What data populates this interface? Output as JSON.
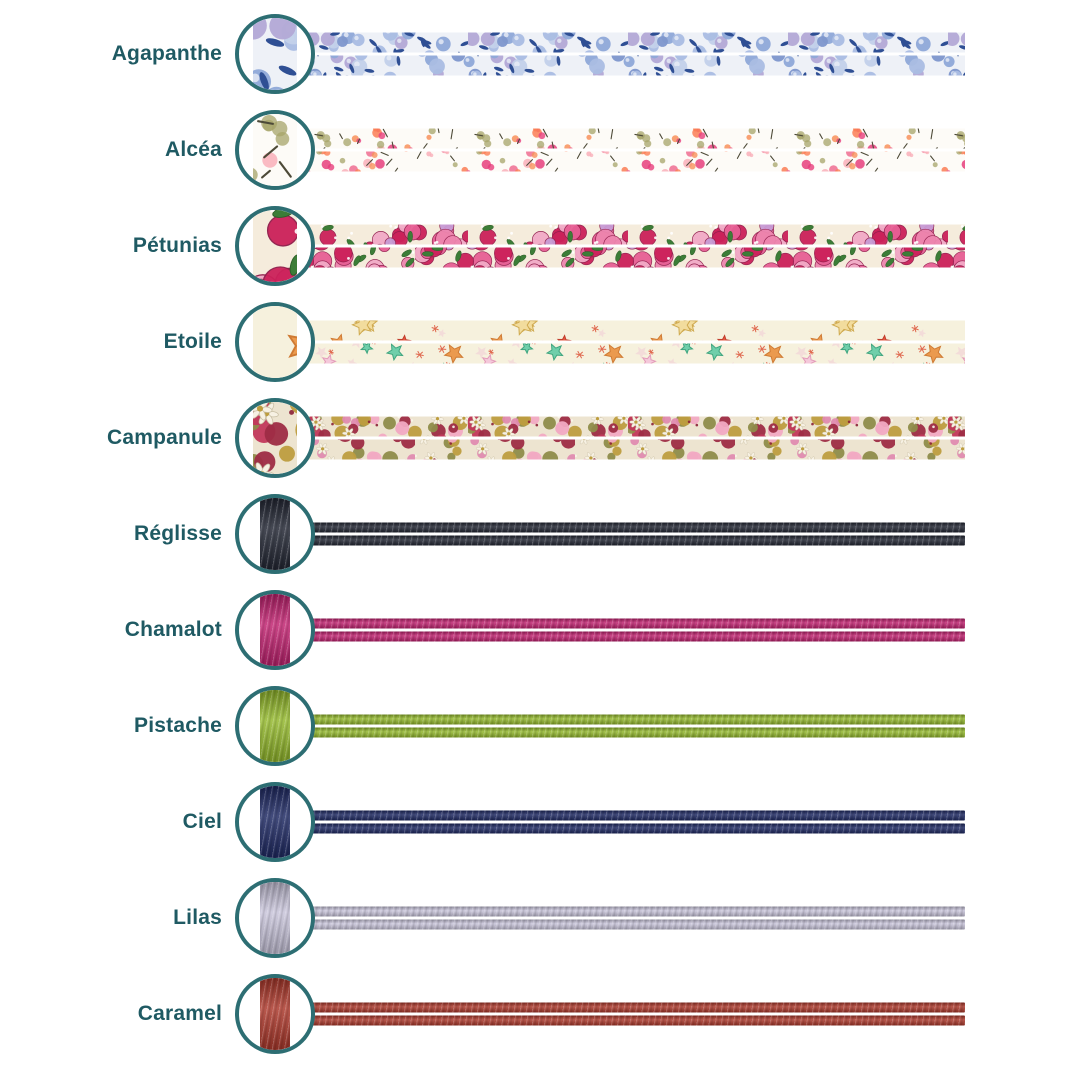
{
  "theme": {
    "background": "#ffffff",
    "ring_color": "#2d6e73",
    "label_color": "#1f5a63"
  },
  "swatches": [
    {
      "label": "Agapanthe",
      "type": "fabric",
      "pattern": "agapanthe"
    },
    {
      "label": "Alcéa",
      "type": "fabric",
      "pattern": "alcea"
    },
    {
      "label": "Pétunias",
      "type": "fabric",
      "pattern": "petunias"
    },
    {
      "label": "Etoile",
      "type": "fabric",
      "pattern": "etoile"
    },
    {
      "label": "Campanule",
      "type": "fabric",
      "pattern": "campanule"
    },
    {
      "label": "Réglisse",
      "type": "cord",
      "color": "#232734"
    },
    {
      "label": "Chamalot",
      "type": "cord",
      "color": "#c22371"
    },
    {
      "label": "Pistache",
      "type": "cord",
      "color": "#94b92d"
    },
    {
      "label": "Ciel",
      "type": "cord",
      "color": "#1f2a64"
    },
    {
      "label": "Lilas",
      "type": "cord",
      "color": "#c8c4da"
    },
    {
      "label": "Caramel",
      "type": "cord",
      "color": "#ad392c"
    }
  ],
  "patterns": {
    "agapanthe": {
      "motif": "berry",
      "bg": "#eef1f7",
      "colors": [
        "#7e96cc",
        "#a9bce2",
        "#b3a8d6",
        "#c3d0ea",
        "#8fa8d8"
      ],
      "leaf": "#2f4f94",
      "highlight": "#e8edf6"
    },
    "alcea": {
      "motif": "floret",
      "bg": "#fdfbf7",
      "colors": [
        "#e73f7d",
        "#f8925c",
        "#f9b0ba",
        "#fb7e55",
        "#ef6f92"
      ],
      "leaf": "#a7a469",
      "stem": "#4d4a38"
    },
    "petunias": {
      "motif": "dense",
      "bg": "#f5ecdc",
      "colors": [
        "#ee85ae",
        "#cc2059",
        "#c79ad4",
        "#e75f95",
        "#f2aac6"
      ],
      "leaf": "#3c7d37",
      "outline": "#8e1b4a",
      "accent": "#ffffff"
    },
    "etoile": {
      "motif": "star",
      "bg": "#f6f1dd",
      "stars": [
        [
          "#6fceaa",
          "#3da47e"
        ],
        [
          "#f2dc9d",
          "#cfa94e"
        ],
        [
          "#e4563f",
          "#c23e2c"
        ],
        [
          "#f4c9da",
          "#e39ab9"
        ],
        [
          "#eb9a4e",
          "#cf7a33"
        ]
      ],
      "sparkle": "#e0694f"
    },
    "campanule": {
      "motif": "dense2",
      "bg": "#ede4d0",
      "colors": [
        "#e08bb0",
        "#c2385a",
        "#8f8c4a",
        "#bd9d3f",
        "#9e2c44",
        "#f2a9c3"
      ],
      "petal": "#f7f1e3",
      "center": "#bd9d3f",
      "leaf": "#8f8c4a"
    }
  }
}
